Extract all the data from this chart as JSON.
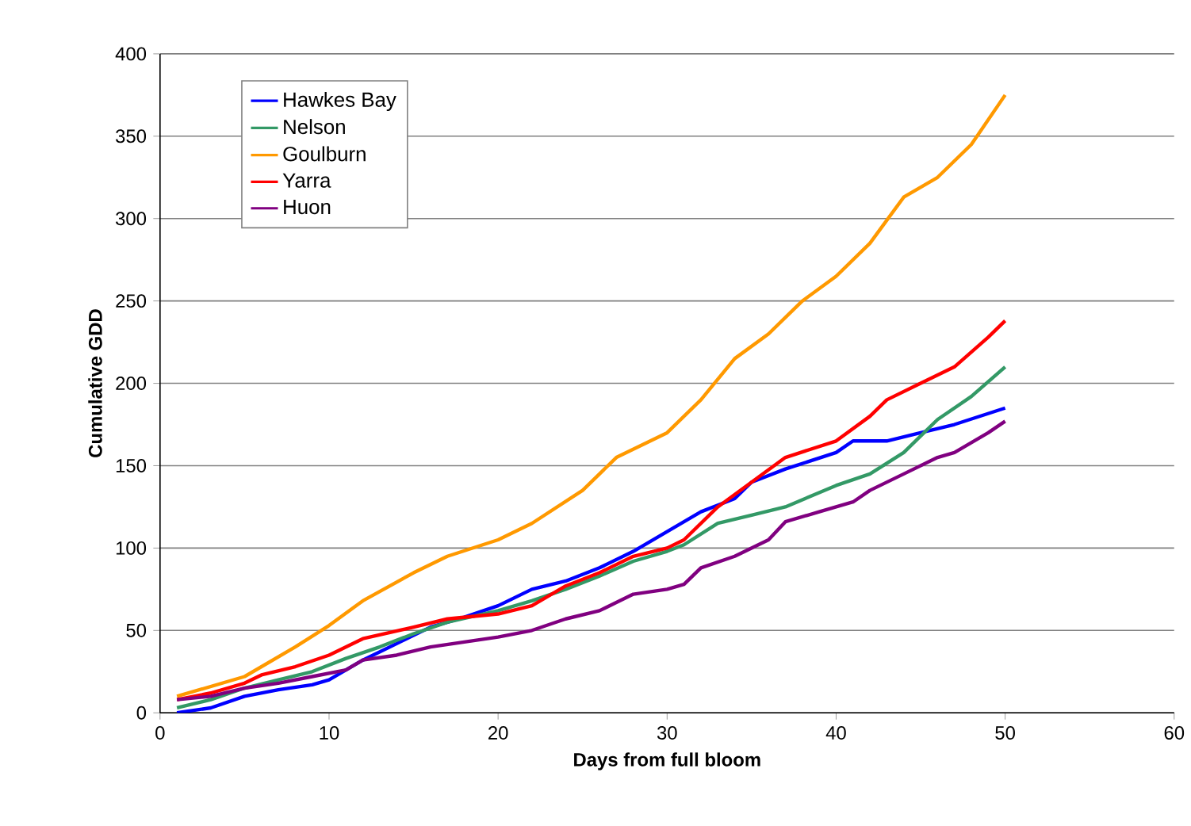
{
  "chart_data": {
    "type": "line",
    "xlabel": "Days from full bloom",
    "ylabel": "Cumulative GDD",
    "xlim": [
      0,
      60
    ],
    "xticks": [
      0,
      10,
      20,
      30,
      40,
      50,
      60
    ],
    "ylim": [
      0,
      400
    ],
    "yticks": [
      0,
      50,
      100,
      150,
      200,
      250,
      300,
      350,
      400
    ],
    "grid": "y",
    "legend": "top left",
    "marker": "none",
    "line_style": "solid",
    "series": [
      {
        "name": "Hawkes Bay",
        "color": "#0000ff",
        "x": [
          1,
          3,
          5,
          7,
          9,
          10,
          12,
          14,
          16,
          18,
          20,
          22,
          24,
          26,
          28,
          30,
          32,
          34,
          35,
          37,
          40,
          41,
          43,
          45,
          47,
          50
        ],
        "values": [
          0,
          3,
          10,
          14,
          17,
          20,
          32,
          42,
          52,
          58,
          65,
          75,
          80,
          88,
          98,
          110,
          122,
          130,
          140,
          148,
          158,
          165,
          165,
          170,
          175,
          185
        ]
      },
      {
        "name": "Nelson",
        "color": "#339966",
        "x": [
          1,
          3,
          5,
          7,
          9,
          11,
          13,
          15,
          17,
          20,
          22,
          24,
          26,
          28,
          30,
          31,
          33,
          35,
          37,
          40,
          42,
          44,
          46,
          48,
          50
        ],
        "values": [
          3,
          8,
          15,
          20,
          25,
          33,
          40,
          48,
          55,
          62,
          68,
          75,
          83,
          92,
          98,
          102,
          115,
          120,
          125,
          138,
          145,
          158,
          178,
          192,
          210
        ]
      },
      {
        "name": "Goulburn",
        "color": "#ff9900",
        "x": [
          1,
          5,
          8,
          10,
          12,
          15,
          17,
          20,
          22,
          25,
          27,
          30,
          32,
          34,
          36,
          38,
          40,
          42,
          44,
          46,
          48,
          50
        ],
        "values": [
          10,
          22,
          40,
          53,
          68,
          85,
          95,
          105,
          115,
          135,
          155,
          170,
          190,
          215,
          230,
          250,
          265,
          285,
          313,
          325,
          345,
          375
        ]
      },
      {
        "name": "Yarra",
        "color": "#ff0000",
        "x": [
          1,
          3,
          5,
          6,
          8,
          10,
          12,
          15,
          17,
          20,
          22,
          24,
          26,
          28,
          30,
          31,
          33,
          35,
          37,
          40,
          42,
          43,
          45,
          47,
          49,
          50
        ],
        "values": [
          8,
          12,
          18,
          23,
          28,
          35,
          45,
          52,
          57,
          60,
          65,
          77,
          85,
          95,
          100,
          105,
          125,
          140,
          155,
          165,
          180,
          190,
          200,
          210,
          228,
          238
        ]
      },
      {
        "name": "Huon",
        "color": "#800080",
        "x": [
          1,
          3,
          5,
          7,
          9,
          11,
          12,
          14,
          16,
          18,
          20,
          22,
          24,
          26,
          28,
          30,
          31,
          32,
          34,
          36,
          37,
          39,
          41,
          42,
          44,
          46,
          47,
          49,
          50
        ],
        "values": [
          8,
          10,
          15,
          18,
          22,
          26,
          32,
          35,
          40,
          43,
          46,
          50,
          57,
          62,
          72,
          75,
          78,
          88,
          95,
          105,
          116,
          122,
          128,
          135,
          145,
          155,
          158,
          170,
          177
        ]
      }
    ]
  }
}
